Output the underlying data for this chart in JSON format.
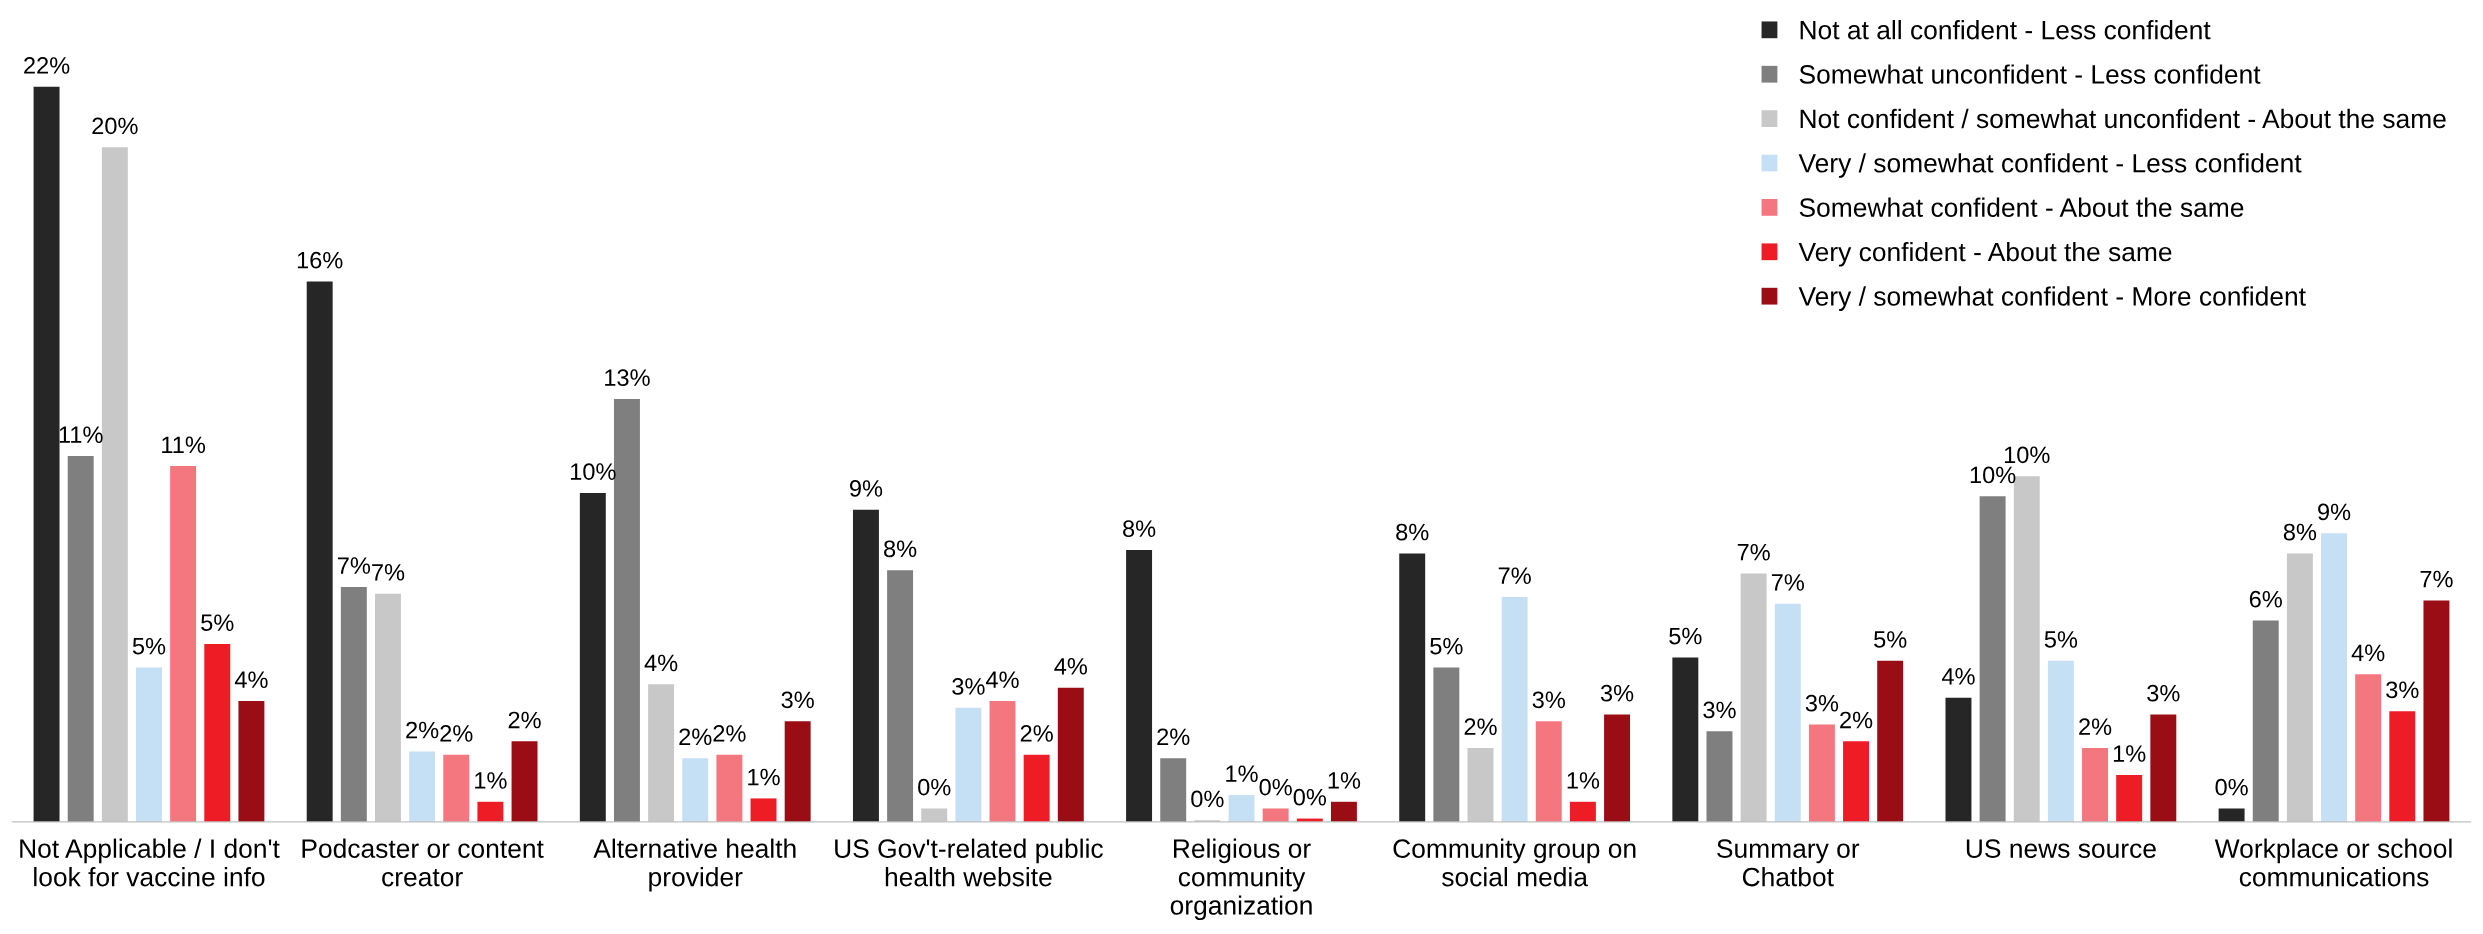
{
  "chart_data": {
    "type": "bar",
    "categories": [
      "Not Applicable / I don't\nlook for vaccine info",
      "Podcaster or content\ncreator",
      "Alternative health\nprovider",
      "US Gov't-related public\nhealth website",
      "Religious or\ncommunity\norganization",
      "Community group on\nsocial media",
      "Summary or\nChatbot",
      "US news source",
      "Workplace or school\ncommunications"
    ],
    "series": [
      {
        "name": "Not at all confident - Less confident",
        "color": "#262626",
        "values": [
          21.9,
          16.1,
          9.8,
          9.3,
          8.1,
          8.0,
          4.9,
          3.7,
          0.4
        ],
        "value_labels": [
          "22%",
          "16%",
          "10%",
          "9%",
          "8%",
          "8%",
          "5%",
          "4%",
          "0%"
        ]
      },
      {
        "name": "Somewhat unconfident - Less confident",
        "color": "#7f7f7f",
        "values": [
          10.9,
          7.0,
          12.6,
          7.5,
          1.9,
          4.6,
          2.7,
          9.7,
          6.0
        ],
        "value_labels": [
          "11%",
          "7%",
          "13%",
          "8%",
          "2%",
          "5%",
          "3%",
          "10%",
          "6%"
        ]
      },
      {
        "name": "Not confident / somewhat unconfident - About the same",
        "color": "#c8c8c8",
        "values": [
          20.1,
          6.8,
          4.1,
          0.4,
          0.05,
          2.2,
          7.4,
          10.3,
          8.0
        ],
        "value_labels": [
          "20%",
          "7%",
          "4%",
          "0%",
          "0%",
          "2%",
          "7%",
          "10%",
          "8%"
        ]
      },
      {
        "name": "Very / somewhat confident - Less confident",
        "color": "#c5e0f4",
        "values": [
          4.6,
          2.1,
          1.9,
          3.4,
          0.8,
          6.7,
          6.5,
          4.8,
          8.6
        ],
        "value_labels": [
          "5%",
          "2%",
          "2%",
          "3%",
          "1%",
          "7%",
          "7%",
          "5%",
          "9%"
        ]
      },
      {
        "name": "Somewhat confident - About the same",
        "color": "#f4777f",
        "values": [
          10.6,
          2.0,
          2.0,
          3.6,
          0.4,
          3.0,
          2.9,
          2.2,
          4.4
        ],
        "value_labels": [
          "11%",
          "2%",
          "2%",
          "4%",
          "0%",
          "3%",
          "3%",
          "2%",
          "4%"
        ]
      },
      {
        "name": "Very confident - About the same",
        "color": "#ee1c25",
        "values": [
          5.3,
          0.6,
          0.7,
          2.0,
          0.1,
          0.6,
          2.4,
          1.4,
          3.3
        ],
        "value_labels": [
          "5%",
          "1%",
          "1%",
          "2%",
          "0%",
          "1%",
          "2%",
          "1%",
          "3%"
        ]
      },
      {
        "name": "Very / somewhat confident - More confident",
        "color": "#9b0d14",
        "values": [
          3.6,
          2.4,
          3.0,
          4.0,
          0.6,
          3.2,
          4.8,
          3.2,
          6.6
        ],
        "value_labels": [
          "4%",
          "2%",
          "3%",
          "4%",
          "1%",
          "3%",
          "5%",
          "3%",
          "7%"
        ]
      }
    ],
    "legend": "top right",
    "grid": false
  }
}
